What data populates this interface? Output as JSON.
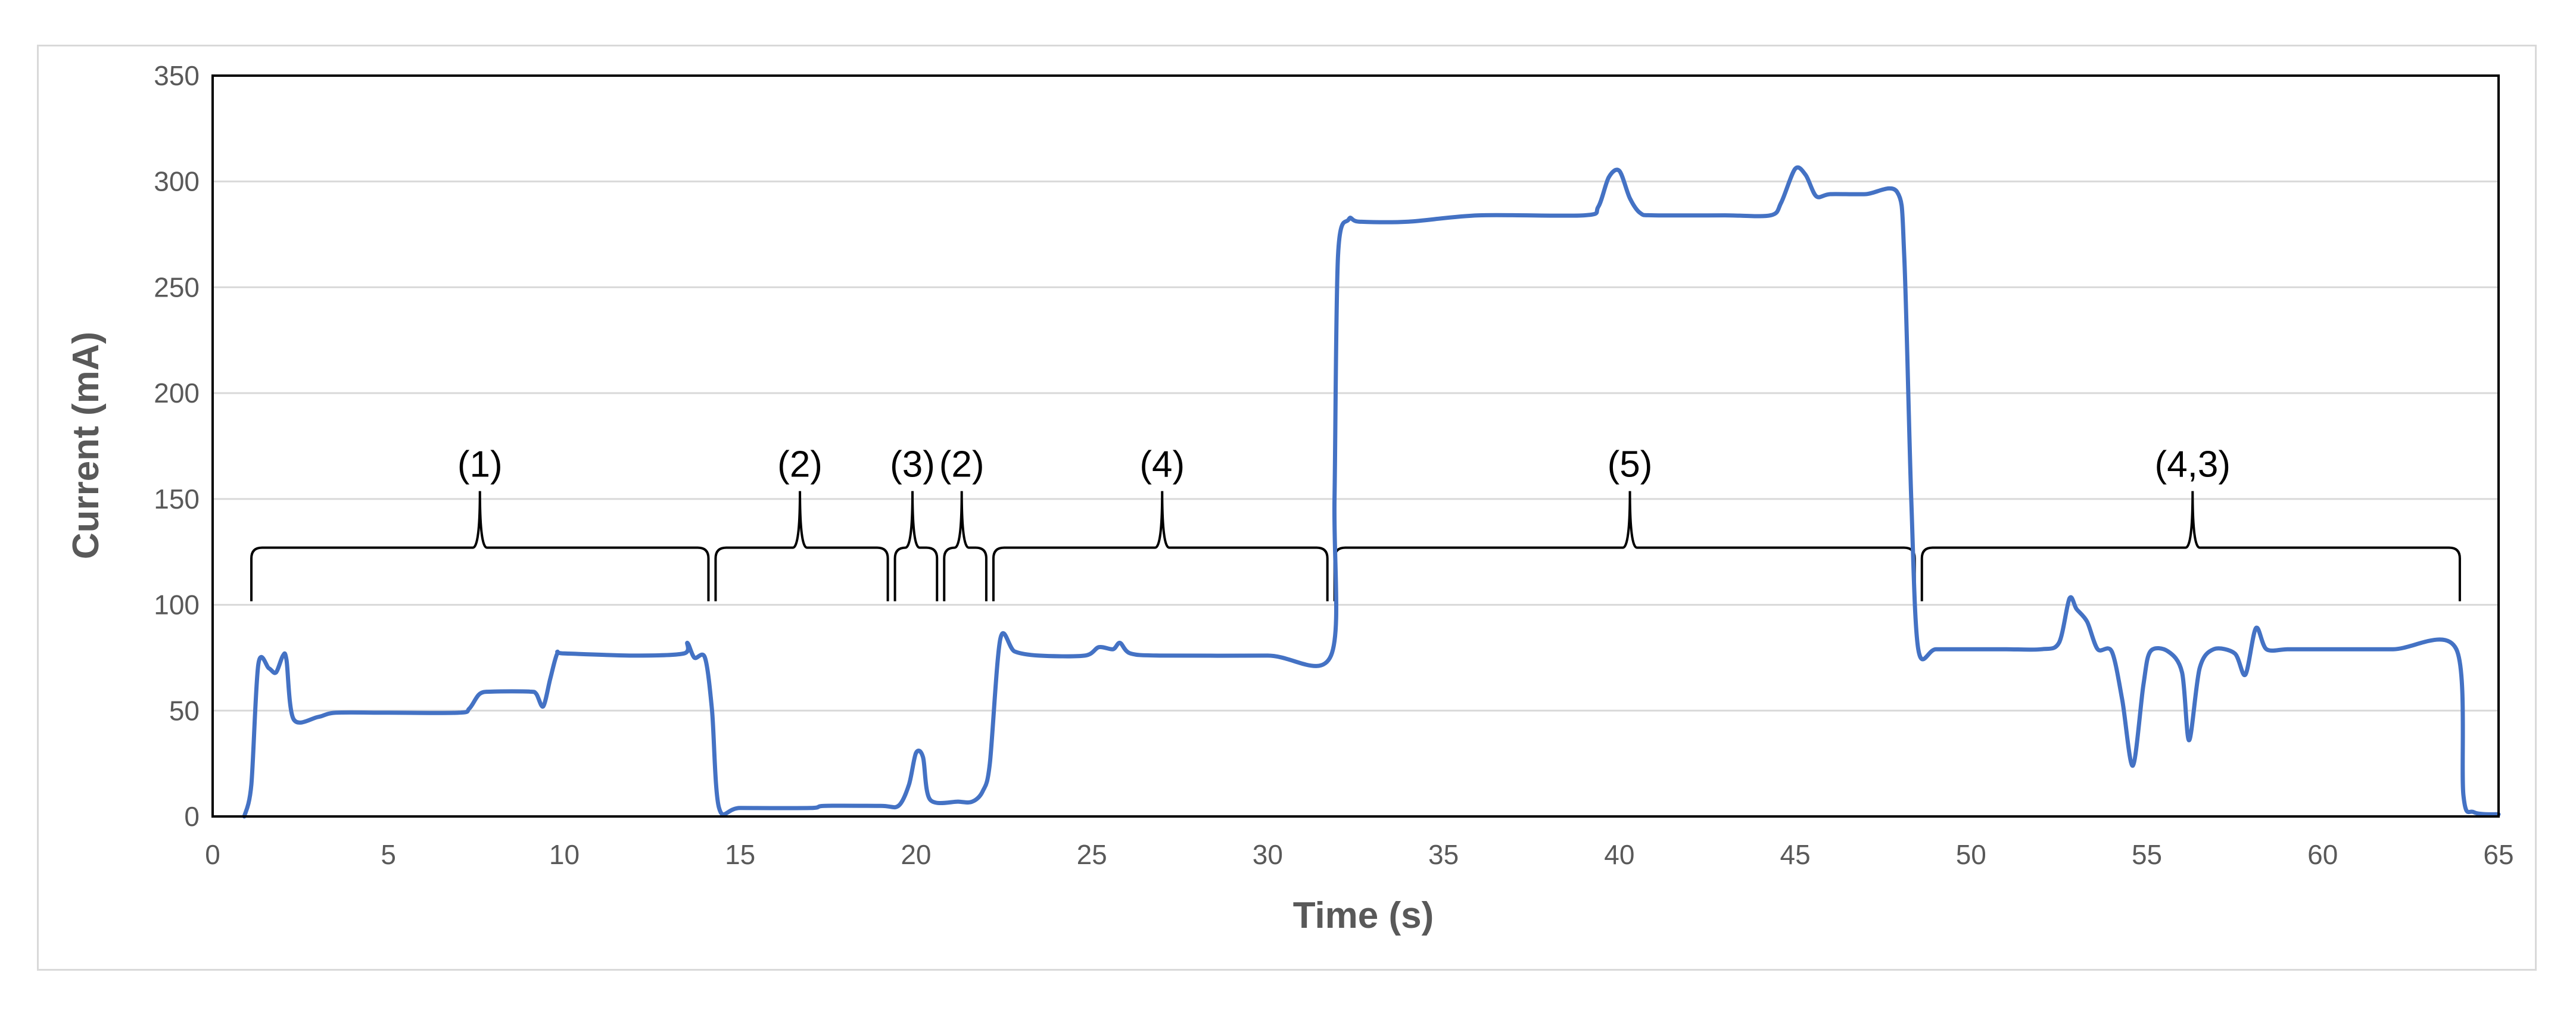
{
  "chart_data": {
    "type": "line",
    "title": "",
    "xlabel": "Time (s)",
    "ylabel": "Current (mA)",
    "xlim": [
      0,
      65
    ],
    "ylim": [
      0,
      350
    ],
    "x_ticks": [
      0,
      5,
      10,
      15,
      20,
      25,
      30,
      35,
      40,
      45,
      50,
      55,
      60,
      65
    ],
    "y_ticks": [
      0,
      50,
      100,
      150,
      200,
      250,
      300,
      350
    ],
    "grid": "horizontal",
    "legend": "none",
    "colors": {
      "line": "#4472c4",
      "grid": "#d9d9d9",
      "axis": "#000000",
      "brace": "#000000"
    },
    "series": [
      {
        "values": [
          [
            0.9,
            0
          ],
          [
            1.1,
            15
          ],
          [
            1.3,
            72
          ],
          [
            1.6,
            70
          ],
          [
            1.8,
            68
          ],
          [
            2.0,
            76
          ],
          [
            2.1,
            74
          ],
          [
            2.3,
            46
          ],
          [
            3.0,
            47
          ],
          [
            3.5,
            49
          ],
          [
            5.0,
            49
          ],
          [
            7.0,
            49
          ],
          [
            7.3,
            51
          ],
          [
            7.6,
            58
          ],
          [
            8.0,
            59
          ],
          [
            9.0,
            59
          ],
          [
            9.2,
            58
          ],
          [
            9.4,
            52
          ],
          [
            9.6,
            65
          ],
          [
            9.8,
            77
          ],
          [
            10.0,
            77
          ],
          [
            12.0,
            76
          ],
          [
            13.4,
            77
          ],
          [
            13.5,
            82
          ],
          [
            13.7,
            75
          ],
          [
            14.0,
            75
          ],
          [
            14.2,
            50
          ],
          [
            14.4,
            4
          ],
          [
            15.0,
            4
          ],
          [
            17.0,
            4
          ],
          [
            17.4,
            5
          ],
          [
            19.0,
            5
          ],
          [
            19.5,
            5
          ],
          [
            19.8,
            15
          ],
          [
            20.0,
            30
          ],
          [
            20.2,
            28
          ],
          [
            20.4,
            8
          ],
          [
            21.2,
            7
          ],
          [
            21.6,
            7
          ],
          [
            21.9,
            12
          ],
          [
            22.1,
            25
          ],
          [
            22.4,
            84
          ],
          [
            22.8,
            78
          ],
          [
            23.5,
            76
          ],
          [
            24.8,
            76
          ],
          [
            25.2,
            80
          ],
          [
            25.6,
            79
          ],
          [
            25.8,
            82
          ],
          [
            26.1,
            77
          ],
          [
            27.0,
            76
          ],
          [
            30.0,
            76
          ],
          [
            31.8,
            76
          ],
          [
            31.9,
            150
          ],
          [
            32.0,
            265
          ],
          [
            32.3,
            282
          ],
          [
            32.6,
            281
          ],
          [
            34.0,
            281
          ],
          [
            36.0,
            284
          ],
          [
            39.0,
            284
          ],
          [
            39.4,
            288
          ],
          [
            39.7,
            302
          ],
          [
            40.0,
            305
          ],
          [
            40.3,
            292
          ],
          [
            40.6,
            285
          ],
          [
            41.0,
            284
          ],
          [
            43.0,
            284
          ],
          [
            44.3,
            284
          ],
          [
            44.6,
            290
          ],
          [
            45.0,
            306
          ],
          [
            45.3,
            303
          ],
          [
            45.6,
            293
          ],
          [
            46.0,
            294
          ],
          [
            47.0,
            294
          ],
          [
            47.9,
            295
          ],
          [
            48.1,
            265
          ],
          [
            48.3,
            150
          ],
          [
            48.5,
            79
          ],
          [
            49.0,
            79
          ],
          [
            50.0,
            79
          ],
          [
            51.0,
            79
          ],
          [
            52.0,
            79
          ],
          [
            52.5,
            82
          ],
          [
            52.8,
            103
          ],
          [
            53.0,
            98
          ],
          [
            53.3,
            92
          ],
          [
            53.6,
            79
          ],
          [
            54.0,
            78
          ],
          [
            54.3,
            55
          ],
          [
            54.6,
            24
          ],
          [
            54.9,
            62
          ],
          [
            55.1,
            78
          ],
          [
            55.6,
            78
          ],
          [
            56.0,
            68
          ],
          [
            56.2,
            36
          ],
          [
            56.5,
            70
          ],
          [
            56.9,
            79
          ],
          [
            57.5,
            77
          ],
          [
            57.8,
            67
          ],
          [
            58.1,
            89
          ],
          [
            58.4,
            79
          ],
          [
            59.0,
            79
          ],
          [
            60.0,
            79
          ],
          [
            62.0,
            79
          ],
          [
            63.8,
            79
          ],
          [
            64.0,
            10
          ],
          [
            64.3,
            2
          ],
          [
            65.0,
            1
          ]
        ]
      }
    ],
    "annotations": [
      {
        "label": "(1)",
        "x_start": 1.0,
        "x_end": 14.2,
        "peak": 7.6
      },
      {
        "label": "(2)",
        "x_start": 14.2,
        "x_end": 19.3,
        "peak": 16.7
      },
      {
        "label": "(3)",
        "x_start": 19.3,
        "x_end": 20.7,
        "peak": 19.9
      },
      {
        "label": "(2)",
        "x_start": 20.7,
        "x_end": 22.1,
        "peak": 21.3
      },
      {
        "label": "(4)",
        "x_start": 22.1,
        "x_end": 31.8,
        "peak": 27.0
      },
      {
        "label": "(5)",
        "x_start": 31.8,
        "x_end": 48.5,
        "peak": 40.3
      },
      {
        "label": "(4,3)",
        "x_start": 48.5,
        "x_end": 64.0,
        "peak": 56.3
      }
    ],
    "annotation_level": 127
  }
}
